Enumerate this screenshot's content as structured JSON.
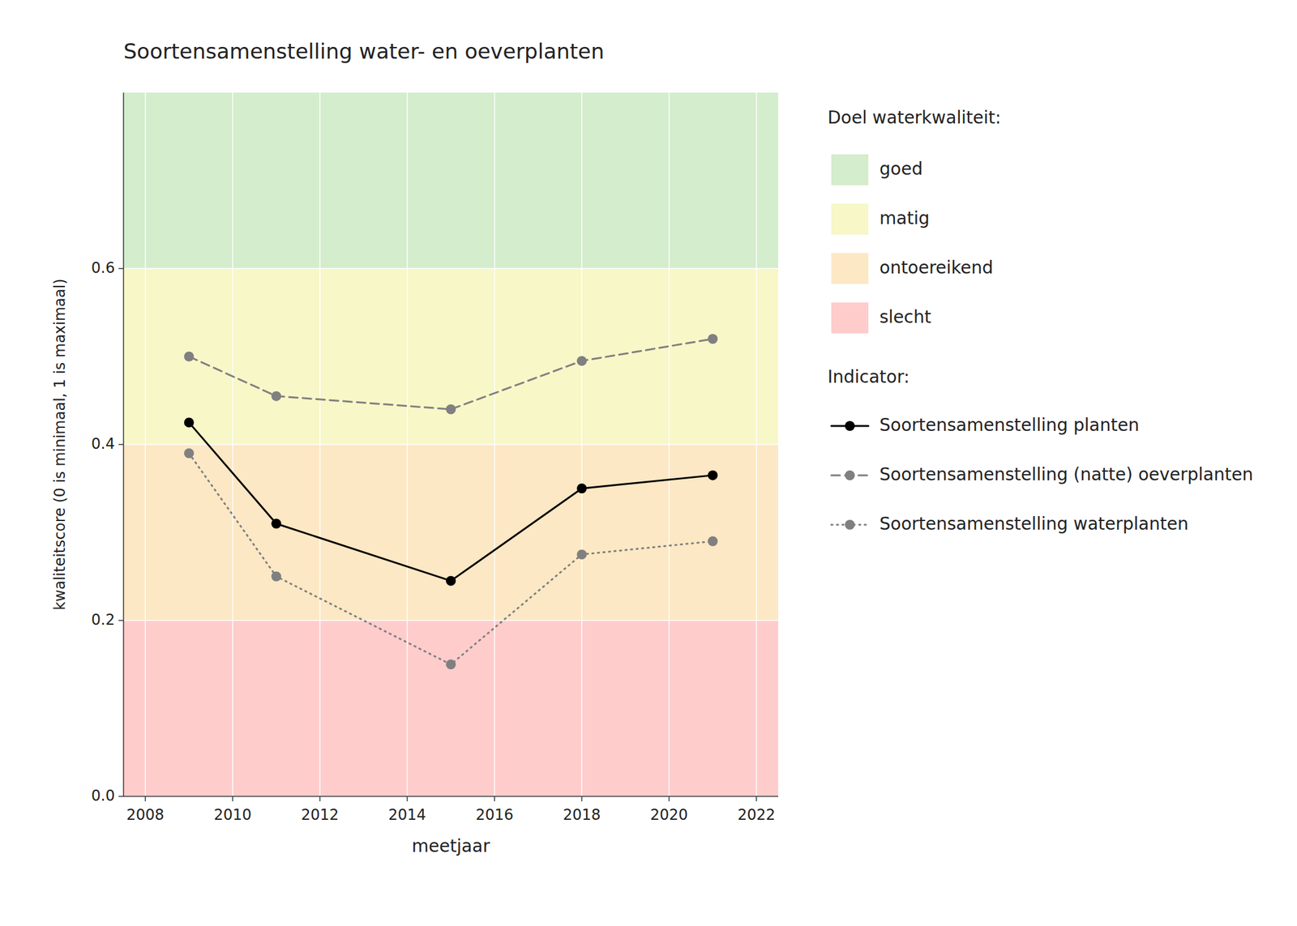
{
  "chart_data": {
    "type": "line",
    "title": "Soortensamenstelling water- en oeverplanten",
    "x_label": "meetjaar",
    "y_label": "kwaliteitscore (0 is minimaal, 1 is maximaal)",
    "x": [
      2009,
      2011,
      2015,
      2018,
      2021
    ],
    "xlim": [
      2007.5,
      2022.5
    ],
    "xticks": [
      2008,
      2010,
      2012,
      2014,
      2016,
      2018,
      2020,
      2022
    ],
    "ylim": [
      0.0,
      0.8
    ],
    "yticks": [
      {
        "value": 0.0,
        "label": "0.0"
      },
      0.2,
      0.4,
      0.6
    ],
    "grid": true,
    "legend_title_bands": "Doel waterkwaliteit:",
    "legend_title_series": "Indicator:",
    "bands": [
      {
        "label": "goed",
        "from": 0.6,
        "to": 0.8,
        "color": "#d4edcc"
      },
      {
        "label": "matig",
        "from": 0.4,
        "to": 0.6,
        "color": "#f7f7c8"
      },
      {
        "label": "ontoereikend",
        "from": 0.2,
        "to": 0.4,
        "color": "#fce8c4"
      },
      {
        "label": "slecht",
        "from": 0.0,
        "to": 0.2,
        "color": "#ffcccc"
      }
    ],
    "series": [
      {
        "name": "Soortensamenstelling planten",
        "color": "#000000",
        "line_style": "solid",
        "marker": "circle",
        "values": [
          0.425,
          0.31,
          0.245,
          0.35,
          0.365
        ]
      },
      {
        "name": "Soortensamenstelling (natte) oeverplanten",
        "color": "#808080",
        "line_style": "dashed",
        "marker": "circle",
        "values": [
          0.5,
          0.455,
          0.44,
          0.495,
          0.52
        ]
      },
      {
        "name": "Soortensamenstelling waterplanten",
        "color": "#808080",
        "line_style": "dotted",
        "marker": "circle",
        "values": [
          0.39,
          0.25,
          0.15,
          0.275,
          0.29
        ]
      }
    ]
  }
}
